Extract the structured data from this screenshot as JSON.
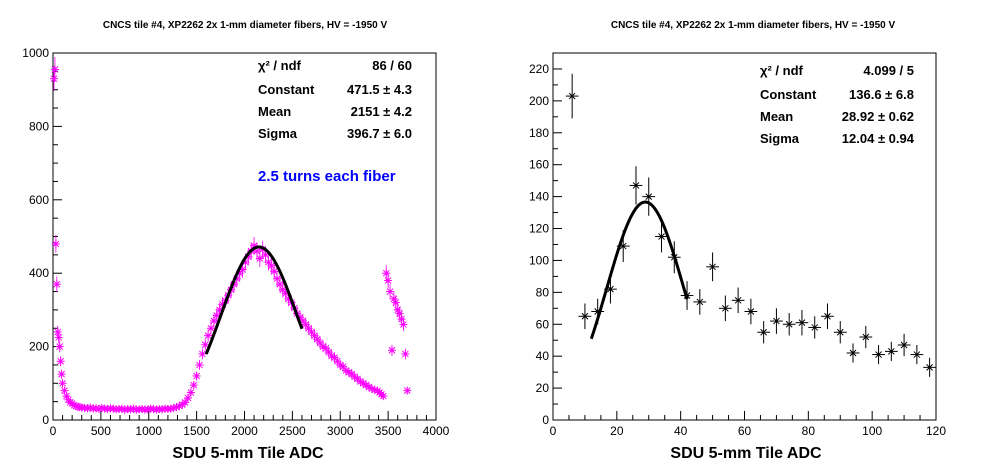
{
  "chart_data": [
    {
      "type": "scatter",
      "title": "CNCS tile #4, XP2262 2x 1-mm diameter fibers, HV = -1950 V",
      "xlabel": "SDU 5-mm Tile ADC",
      "ylabel": "",
      "xlim": [
        0,
        4000
      ],
      "ylim": [
        0,
        1000
      ],
      "xticks": [
        0,
        500,
        1000,
        1500,
        2000,
        2500,
        3000,
        3500,
        4000
      ],
      "yticks": [
        0,
        200,
        400,
        600,
        800,
        1000
      ],
      "marker_color": "#ff00ff",
      "fit_color": "#000000",
      "annotation": "2.5 turns each fiber",
      "annotation_color": "#0000ff",
      "stats": [
        {
          "label": "χ² / ndf",
          "value": "86 / 60"
        },
        {
          "label": "Constant",
          "value": "471.5 ± 4.3"
        },
        {
          "label": "Mean",
          "value": "2151 ± 4.2"
        },
        {
          "label": "Sigma",
          "value": "396.7 ± 6.0"
        }
      ],
      "fit": {
        "constant": 471.5,
        "mean": 2151,
        "sigma": 396.7,
        "range": [
          1600,
          2600
        ]
      },
      "points": [
        [
          10,
          930
        ],
        [
          20,
          955
        ],
        [
          30,
          480
        ],
        [
          40,
          370
        ],
        [
          50,
          240
        ],
        [
          60,
          225
        ],
        [
          70,
          200
        ],
        [
          80,
          160
        ],
        [
          90,
          125
        ],
        [
          100,
          100
        ],
        [
          120,
          80
        ],
        [
          140,
          65
        ],
        [
          160,
          55
        ],
        [
          180,
          48
        ],
        [
          200,
          45
        ],
        [
          220,
          40
        ],
        [
          240,
          38
        ],
        [
          260,
          36
        ],
        [
          280,
          35
        ],
        [
          300,
          34
        ],
        [
          330,
          33
        ],
        [
          360,
          32
        ],
        [
          390,
          34
        ],
        [
          420,
          31
        ],
        [
          450,
          32
        ],
        [
          480,
          30
        ],
        [
          510,
          33
        ],
        [
          540,
          31
        ],
        [
          570,
          30
        ],
        [
          600,
          32
        ],
        [
          630,
          31
        ],
        [
          660,
          29
        ],
        [
          690,
          30
        ],
        [
          720,
          31
        ],
        [
          750,
          28
        ],
        [
          780,
          30
        ],
        [
          810,
          29
        ],
        [
          840,
          31
        ],
        [
          870,
          28
        ],
        [
          900,
          29
        ],
        [
          930,
          30
        ],
        [
          960,
          28
        ],
        [
          990,
          29
        ],
        [
          1020,
          31
        ],
        [
          1050,
          30
        ],
        [
          1080,
          28
        ],
        [
          1110,
          30
        ],
        [
          1140,
          29
        ],
        [
          1170,
          31
        ],
        [
          1200,
          30
        ],
        [
          1230,
          31
        ],
        [
          1260,
          33
        ],
        [
          1290,
          35
        ],
        [
          1320,
          38
        ],
        [
          1350,
          42
        ],
        [
          1380,
          48
        ],
        [
          1410,
          60
        ],
        [
          1440,
          75
        ],
        [
          1470,
          95
        ],
        [
          1500,
          120
        ],
        [
          1530,
          150
        ],
        [
          1560,
          180
        ],
        [
          1590,
          205
        ],
        [
          1620,
          230
        ],
        [
          1650,
          250
        ],
        [
          1680,
          270
        ],
        [
          1710,
          285
        ],
        [
          1740,
          300
        ],
        [
          1770,
          315
        ],
        [
          1800,
          325
        ],
        [
          1830,
          340
        ],
        [
          1860,
          355
        ],
        [
          1890,
          370
        ],
        [
          1920,
          385
        ],
        [
          1950,
          400
        ],
        [
          1980,
          410
        ],
        [
          2010,
          430
        ],
        [
          2040,
          445
        ],
        [
          2070,
          460
        ],
        [
          2100,
          475
        ],
        [
          2130,
          460
        ],
        [
          2160,
          440
        ],
        [
          2190,
          465
        ],
        [
          2220,
          450
        ],
        [
          2250,
          430
        ],
        [
          2280,
          420
        ],
        [
          2310,
          405
        ],
        [
          2340,
          385
        ],
        [
          2370,
          370
        ],
        [
          2400,
          355
        ],
        [
          2430,
          345
        ],
        [
          2460,
          330
        ],
        [
          2490,
          320
        ],
        [
          2520,
          305
        ],
        [
          2550,
          290
        ],
        [
          2580,
          280
        ],
        [
          2610,
          270
        ],
        [
          2640,
          260
        ],
        [
          2670,
          250
        ],
        [
          2700,
          240
        ],
        [
          2730,
          230
        ],
        [
          2760,
          220
        ],
        [
          2790,
          210
        ],
        [
          2820,
          200
        ],
        [
          2850,
          195
        ],
        [
          2880,
          185
        ],
        [
          2910,
          175
        ],
        [
          2940,
          170
        ],
        [
          2970,
          160
        ],
        [
          3000,
          150
        ],
        [
          3030,
          145
        ],
        [
          3060,
          135
        ],
        [
          3090,
          130
        ],
        [
          3120,
          125
        ],
        [
          3150,
          118
        ],
        [
          3180,
          112
        ],
        [
          3210,
          105
        ],
        [
          3240,
          100
        ],
        [
          3270,
          95
        ],
        [
          3300,
          90
        ],
        [
          3330,
          85
        ],
        [
          3360,
          82
        ],
        [
          3390,
          80
        ],
        [
          3410,
          75
        ],
        [
          3430,
          70
        ],
        [
          3450,
          65
        ],
        [
          3480,
          400
        ],
        [
          3500,
          380
        ],
        [
          3520,
          350
        ],
        [
          3540,
          190
        ],
        [
          3560,
          330
        ],
        [
          3580,
          320
        ],
        [
          3600,
          300
        ],
        [
          3620,
          290
        ],
        [
          3640,
          275
        ],
        [
          3660,
          260
        ],
        [
          3680,
          180
        ],
        [
          3700,
          80
        ]
      ]
    },
    {
      "type": "scatter",
      "title": "CNCS tile #4, XP2262 2x 1-mm diameter fibers, HV = -1950 V",
      "xlabel": "SDU 5-mm Tile ADC",
      "ylabel": "",
      "xlim": [
        0,
        120
      ],
      "ylim": [
        0,
        230
      ],
      "xticks": [
        0,
        20,
        40,
        60,
        80,
        100,
        120
      ],
      "yticks": [
        0,
        20,
        40,
        60,
        80,
        100,
        120,
        140,
        160,
        180,
        200,
        220
      ],
      "marker_color": "#000000",
      "fit_color": "#000000",
      "stats": [
        {
          "label": "χ² / ndf",
          "value": "4.099 / 5"
        },
        {
          "label": "Constant",
          "value": "136.6 ± 6.8"
        },
        {
          "label": "Mean",
          "value": "28.92 ± 0.62"
        },
        {
          "label": "Sigma",
          "value": "12.04 ± 0.94"
        }
      ],
      "fit": {
        "constant": 136.6,
        "mean": 28.92,
        "sigma": 12.04,
        "range": [
          12,
          42
        ]
      },
      "points": [
        [
          6,
          203,
          14
        ],
        [
          10,
          65,
          8
        ],
        [
          14,
          68,
          8
        ],
        [
          18,
          82,
          9
        ],
        [
          22,
          109,
          10
        ],
        [
          26,
          147,
          12
        ],
        [
          30,
          140,
          12
        ],
        [
          34,
          115,
          10
        ],
        [
          38,
          102,
          10
        ],
        [
          42,
          78,
          9
        ],
        [
          46,
          74,
          8
        ],
        [
          50,
          96,
          9
        ],
        [
          54,
          70,
          8
        ],
        [
          58,
          75,
          8
        ],
        [
          62,
          68,
          8
        ],
        [
          66,
          55,
          7
        ],
        [
          70,
          62,
          8
        ],
        [
          74,
          60,
          7
        ],
        [
          78,
          61,
          8
        ],
        [
          82,
          58,
          7
        ],
        [
          86,
          65,
          8
        ],
        [
          90,
          55,
          7
        ],
        [
          94,
          42,
          6
        ],
        [
          98,
          52,
          7
        ],
        [
          102,
          41,
          6
        ],
        [
          106,
          43,
          6
        ],
        [
          110,
          47,
          7
        ],
        [
          114,
          41,
          6
        ],
        [
          118,
          33,
          6
        ]
      ]
    }
  ]
}
